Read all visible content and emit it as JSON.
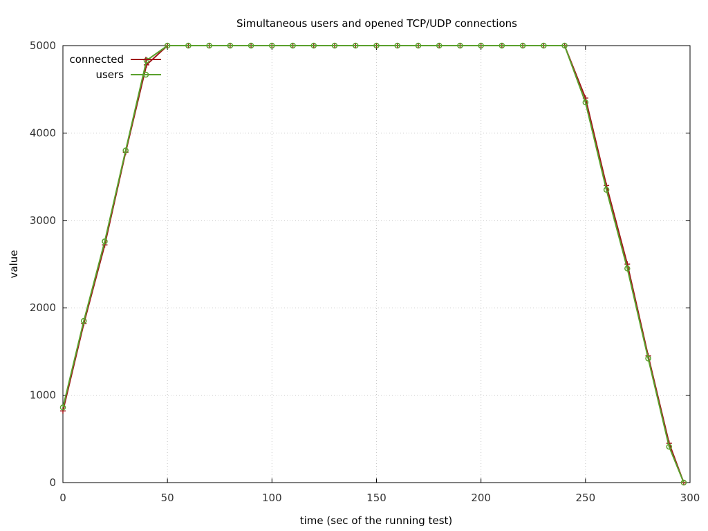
{
  "chart_data": {
    "type": "line",
    "title": "Simultaneous users and opened TCP/UDP connections",
    "xlabel": "time (sec of the running test)",
    "ylabel": "value",
    "xlim": [
      0,
      300
    ],
    "ylim": [
      0,
      5000
    ],
    "xticks": [
      0,
      50,
      100,
      150,
      200,
      250,
      300
    ],
    "yticks": [
      0,
      1000,
      2000,
      3000,
      4000,
      5000
    ],
    "grid": true,
    "legend_position": "top-left",
    "series": [
      {
        "name": "connected",
        "color": "#a0161a",
        "marker": "plus",
        "x": [
          0,
          10,
          20,
          30,
          40,
          50,
          60,
          70,
          80,
          90,
          100,
          110,
          120,
          130,
          140,
          150,
          160,
          170,
          180,
          190,
          200,
          210,
          220,
          230,
          240,
          250,
          260,
          270,
          280,
          290,
          297
        ],
        "y": [
          820,
          1820,
          2720,
          3780,
          4780,
          5000,
          5000,
          5000,
          5000,
          5000,
          5000,
          5000,
          5000,
          5000,
          5000,
          5000,
          5000,
          5000,
          5000,
          5000,
          5000,
          5000,
          5000,
          5000,
          5000,
          4400,
          3400,
          2500,
          1450,
          450,
          0
        ]
      },
      {
        "name": "users",
        "color": "#5aa02c",
        "marker": "circle",
        "x": [
          0,
          10,
          20,
          30,
          40,
          50,
          60,
          70,
          80,
          90,
          100,
          110,
          120,
          130,
          140,
          150,
          160,
          170,
          180,
          190,
          200,
          210,
          220,
          230,
          240,
          250,
          260,
          270,
          280,
          290,
          297
        ],
        "y": [
          860,
          1850,
          2760,
          3800,
          4830,
          5000,
          5000,
          5000,
          5000,
          5000,
          5000,
          5000,
          5000,
          5000,
          5000,
          5000,
          5000,
          5000,
          5000,
          5000,
          5000,
          5000,
          5000,
          5000,
          5000,
          4350,
          3350,
          2450,
          1420,
          410,
          0
        ]
      }
    ]
  }
}
